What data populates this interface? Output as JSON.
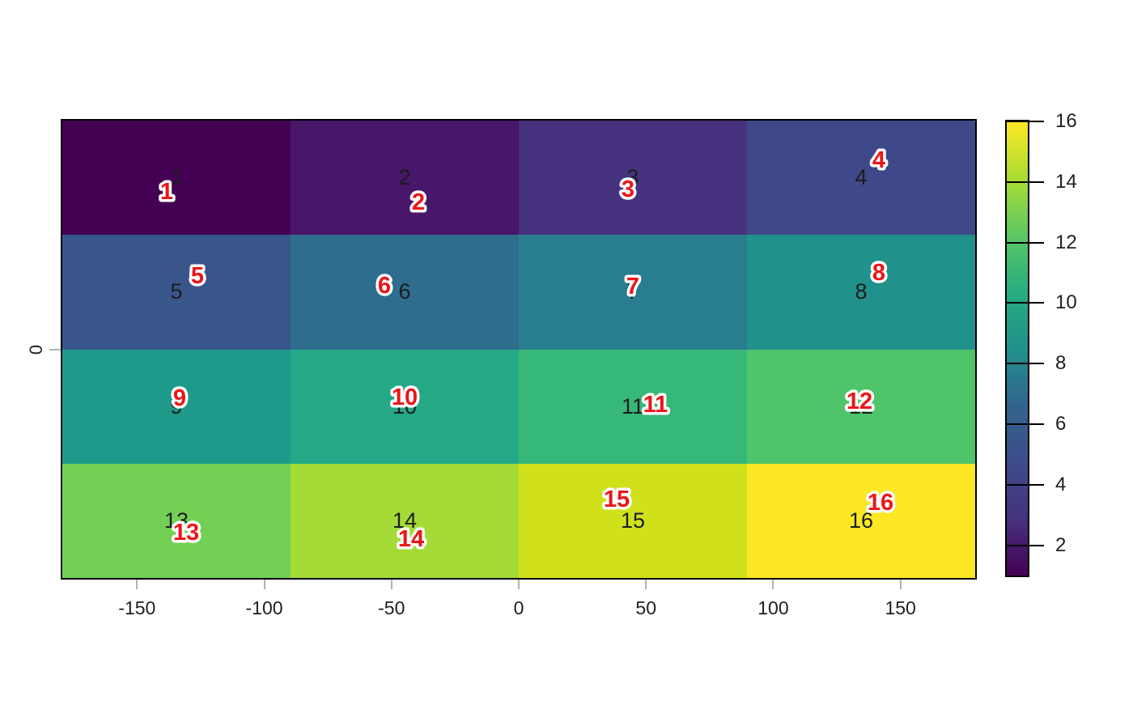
{
  "chart_data": {
    "type": "heatmap",
    "title": "",
    "description": "4x4 heatmap with viridis palette, cell values 1-16, black value labels at cell centers and red jittered duplicate labels with white halo",
    "x_axis": {
      "range": [
        -180,
        180
      ],
      "ticks": [
        -150,
        -100,
        -50,
        0,
        50,
        100,
        150
      ],
      "tick_labels": [
        "-150",
        "-100",
        "-50",
        "0",
        "50",
        "100",
        "150"
      ]
    },
    "y_axis": {
      "tick_label": "0"
    },
    "grid": {
      "rows": 4,
      "cols": 4,
      "grid_lines": false
    },
    "legend_position": "right",
    "cells": [
      {
        "value": 1,
        "label": "1",
        "row": 0,
        "col": 0,
        "color": "#440154",
        "red_dx": -12,
        "red_dy": 16
      },
      {
        "value": 2,
        "label": "2",
        "row": 0,
        "col": 1,
        "color": "#481769",
        "red_dx": 17,
        "red_dy": 29
      },
      {
        "value": 3,
        "label": "3",
        "row": 0,
        "col": 2,
        "color": "#46327e",
        "red_dx": -6,
        "red_dy": 13
      },
      {
        "value": 4,
        "label": "4",
        "row": 0,
        "col": 3,
        "color": "#3f4889",
        "red_dx": 22,
        "red_dy": -23
      },
      {
        "value": 5,
        "label": "5",
        "row": 1,
        "col": 0,
        "color": "#39568c",
        "red_dx": 26,
        "red_dy": -21
      },
      {
        "value": 6,
        "label": "6",
        "row": 1,
        "col": 1,
        "color": "#2e6d8e",
        "red_dx": -25,
        "red_dy": -9
      },
      {
        "value": 7,
        "label": "7",
        "row": 1,
        "col": 2,
        "color": "#287d8e",
        "red_dx": 0,
        "red_dy": -8
      },
      {
        "value": 8,
        "label": "8",
        "row": 1,
        "col": 3,
        "color": "#21918c",
        "red_dx": 22,
        "red_dy": -25
      },
      {
        "value": 9,
        "label": "9",
        "row": 2,
        "col": 0,
        "color": "#1f9a8a",
        "red_dx": 4,
        "red_dy": -11
      },
      {
        "value": 10,
        "label": "10",
        "row": 2,
        "col": 1,
        "color": "#24a885",
        "red_dx": 0,
        "red_dy": -12
      },
      {
        "value": 11,
        "label": "11",
        "row": 2,
        "col": 2,
        "color": "#36b878",
        "red_dx": 28,
        "red_dy": -3
      },
      {
        "value": 12,
        "label": "12",
        "row": 2,
        "col": 3,
        "color": "#50c46a",
        "red_dx": -2,
        "red_dy": -7
      },
      {
        "value": 13,
        "label": "13",
        "row": 3,
        "col": 0,
        "color": "#74d055",
        "red_dx": 12,
        "red_dy": 14
      },
      {
        "value": 14,
        "label": "14",
        "row": 3,
        "col": 1,
        "color": "#a5db36",
        "red_dx": 8,
        "red_dy": 22
      },
      {
        "value": 15,
        "label": "15",
        "row": 3,
        "col": 2,
        "color": "#d0e11c",
        "red_dx": -20,
        "red_dy": -27
      },
      {
        "value": 16,
        "label": "16",
        "row": 3,
        "col": 3,
        "color": "#fbe723",
        "red_dx": 24,
        "red_dy": -23
      }
    ],
    "colorbar": {
      "min": 1,
      "max": 16,
      "ticks": [
        2,
        4,
        6,
        8,
        10,
        12,
        14,
        16
      ],
      "tick_labels": [
        "2",
        "4",
        "6",
        "8",
        "10",
        "12",
        "14",
        "16"
      ],
      "gradient_stops": [
        "#440154",
        "#46327e",
        "#3e4c8a",
        "#32648e",
        "#21918c",
        "#27ad81",
        "#5cc863",
        "#aadc32",
        "#fde725"
      ]
    },
    "colors": {
      "value_label": "#1c1c1c",
      "jitter_label": "#ee1416",
      "jitter_halo": "#ffffff",
      "tick_mark": "#b3b3b3",
      "border": "#000000",
      "background": "#ffffff"
    }
  }
}
